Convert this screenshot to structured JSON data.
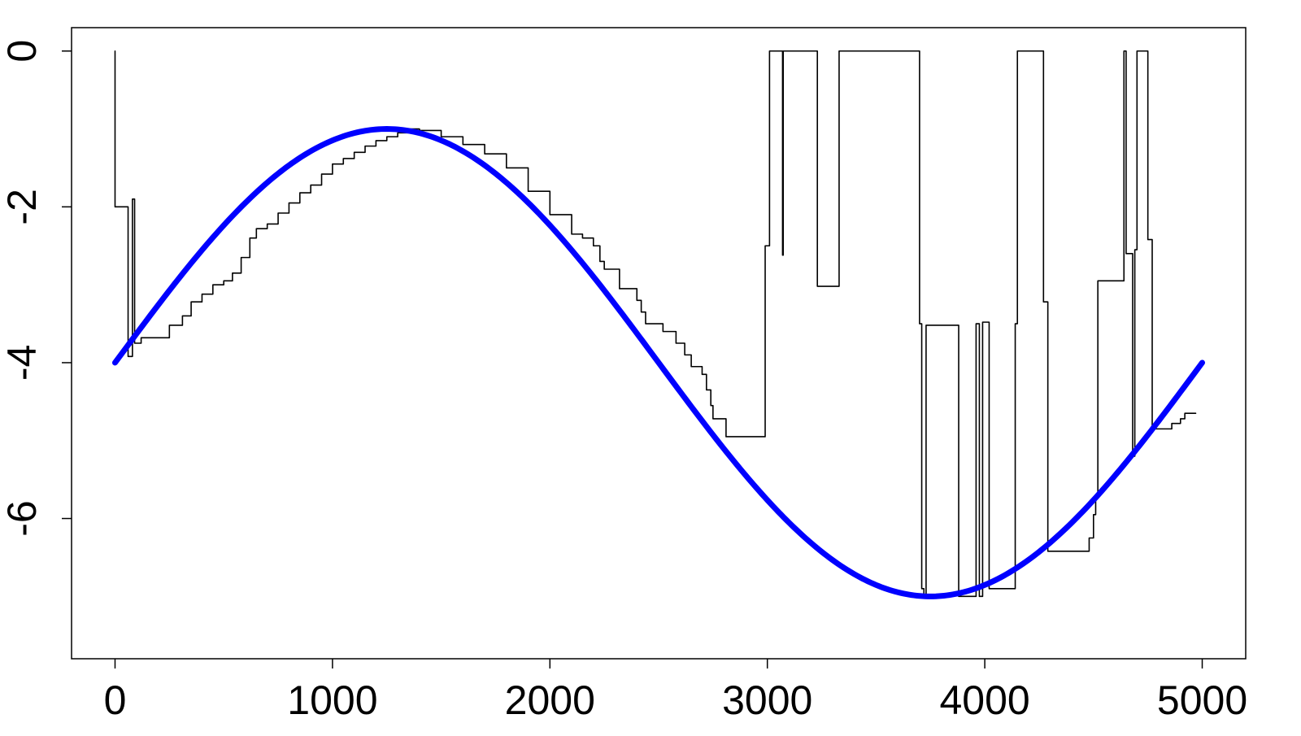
{
  "chart_data": {
    "type": "line",
    "title": "",
    "xlabel": "",
    "ylabel": "",
    "xlim": [
      -200,
      5200
    ],
    "ylim": [
      -7.8,
      0.3
    ],
    "grid": false,
    "x_ticks": [
      0,
      1000,
      2000,
      3000,
      4000,
      5000
    ],
    "x_tick_labels": [
      "0",
      "1000",
      "2000",
      "3000",
      "4000",
      "5000"
    ],
    "y_ticks": [
      0,
      -2,
      -4,
      -6
    ],
    "y_tick_labels": [
      "0",
      "-2",
      "-4",
      "-6"
    ],
    "series": [
      {
        "style": "step",
        "color": "#000000",
        "points": [
          [
            0,
            0
          ],
          [
            0,
            -2
          ],
          [
            60,
            -2
          ],
          [
            60,
            -3.92
          ],
          [
            80,
            -3.92
          ],
          [
            80,
            -1.9
          ],
          [
            90,
            -1.9
          ],
          [
            90,
            -3.75
          ],
          [
            120,
            -3.75
          ],
          [
            120,
            -3.68
          ],
          [
            250,
            -3.68
          ],
          [
            250,
            -3.52
          ],
          [
            310,
            -3.52
          ],
          [
            310,
            -3.4
          ],
          [
            350,
            -3.4
          ],
          [
            350,
            -3.22
          ],
          [
            400,
            -3.22
          ],
          [
            400,
            -3.12
          ],
          [
            450,
            -3.12
          ],
          [
            450,
            -3.0
          ],
          [
            500,
            -3.0
          ],
          [
            500,
            -2.95
          ],
          [
            540,
            -2.95
          ],
          [
            540,
            -2.85
          ],
          [
            580,
            -2.85
          ],
          [
            580,
            -2.65
          ],
          [
            620,
            -2.65
          ],
          [
            620,
            -2.4
          ],
          [
            650,
            -2.4
          ],
          [
            650,
            -2.28
          ],
          [
            700,
            -2.28
          ],
          [
            700,
            -2.22
          ],
          [
            750,
            -2.22
          ],
          [
            750,
            -2.08
          ],
          [
            800,
            -2.08
          ],
          [
            800,
            -1.95
          ],
          [
            850,
            -1.95
          ],
          [
            850,
            -1.82
          ],
          [
            900,
            -1.82
          ],
          [
            900,
            -1.72
          ],
          [
            950,
            -1.72
          ],
          [
            950,
            -1.58
          ],
          [
            1000,
            -1.58
          ],
          [
            1000,
            -1.45
          ],
          [
            1050,
            -1.45
          ],
          [
            1050,
            -1.38
          ],
          [
            1100,
            -1.38
          ],
          [
            1100,
            -1.3
          ],
          [
            1150,
            -1.3
          ],
          [
            1150,
            -1.22
          ],
          [
            1200,
            -1.22
          ],
          [
            1200,
            -1.15
          ],
          [
            1250,
            -1.15
          ],
          [
            1250,
            -1.1
          ],
          [
            1300,
            -1.1
          ],
          [
            1300,
            -1.05
          ],
          [
            1350,
            -1.05
          ],
          [
            1350,
            -1.0
          ],
          [
            1400,
            -1.0
          ],
          [
            1400,
            -1.02
          ],
          [
            1500,
            -1.02
          ],
          [
            1500,
            -1.1
          ],
          [
            1600,
            -1.1
          ],
          [
            1600,
            -1.2
          ],
          [
            1700,
            -1.2
          ],
          [
            1700,
            -1.32
          ],
          [
            1800,
            -1.32
          ],
          [
            1800,
            -1.5
          ],
          [
            1900,
            -1.5
          ],
          [
            1900,
            -1.8
          ],
          [
            2000,
            -1.8
          ],
          [
            2000,
            -2.1
          ],
          [
            2100,
            -2.1
          ],
          [
            2100,
            -2.35
          ],
          [
            2150,
            -2.35
          ],
          [
            2150,
            -2.4
          ],
          [
            2200,
            -2.4
          ],
          [
            2200,
            -2.5
          ],
          [
            2230,
            -2.5
          ],
          [
            2230,
            -2.7
          ],
          [
            2250,
            -2.7
          ],
          [
            2250,
            -2.8
          ],
          [
            2320,
            -2.8
          ],
          [
            2320,
            -3.05
          ],
          [
            2400,
            -3.05
          ],
          [
            2400,
            -3.2
          ],
          [
            2420,
            -3.2
          ],
          [
            2420,
            -3.35
          ],
          [
            2440,
            -3.35
          ],
          [
            2440,
            -3.5
          ],
          [
            2520,
            -3.5
          ],
          [
            2520,
            -3.6
          ],
          [
            2580,
            -3.6
          ],
          [
            2580,
            -3.75
          ],
          [
            2620,
            -3.75
          ],
          [
            2620,
            -3.9
          ],
          [
            2650,
            -3.9
          ],
          [
            2650,
            -4.05
          ],
          [
            2700,
            -4.05
          ],
          [
            2700,
            -4.15
          ],
          [
            2720,
            -4.15
          ],
          [
            2720,
            -4.35
          ],
          [
            2740,
            -4.35
          ],
          [
            2740,
            -4.55
          ],
          [
            2750,
            -4.55
          ],
          [
            2750,
            -4.72
          ],
          [
            2810,
            -4.72
          ],
          [
            2810,
            -4.95
          ],
          [
            2990,
            -4.95
          ],
          [
            2990,
            -2.5
          ],
          [
            3010,
            -2.5
          ],
          [
            3010,
            0
          ],
          [
            3070,
            0
          ],
          [
            3070,
            -2.62
          ],
          [
            3073,
            -2.62
          ],
          [
            3073,
            0
          ],
          [
            3230,
            0
          ],
          [
            3230,
            -3.02
          ],
          [
            3330,
            -3.02
          ],
          [
            3330,
            0
          ],
          [
            3700,
            0
          ],
          [
            3700,
            -3.5
          ],
          [
            3710,
            -3.5
          ],
          [
            3710,
            -6.9
          ],
          [
            3720,
            -6.9
          ],
          [
            3720,
            -6.98
          ],
          [
            3730,
            -6.98
          ],
          [
            3730,
            -3.52
          ],
          [
            3880,
            -3.52
          ],
          [
            3880,
            -7.0
          ],
          [
            3960,
            -7.0
          ],
          [
            3960,
            -3.5
          ],
          [
            3975,
            -3.5
          ],
          [
            3975,
            -7.0
          ],
          [
            3990,
            -7.0
          ],
          [
            3990,
            -3.48
          ],
          [
            4020,
            -3.48
          ],
          [
            4020,
            -6.9
          ],
          [
            4140,
            -6.9
          ],
          [
            4140,
            -3.5
          ],
          [
            4150,
            -3.5
          ],
          [
            4150,
            0
          ],
          [
            4270,
            0
          ],
          [
            4270,
            -3.22
          ],
          [
            4290,
            -3.22
          ],
          [
            4290,
            -6.42
          ],
          [
            4480,
            -6.42
          ],
          [
            4480,
            -6.25
          ],
          [
            4500,
            -6.25
          ],
          [
            4500,
            -5.95
          ],
          [
            4510,
            -5.95
          ],
          [
            4510,
            -5.7
          ],
          [
            4520,
            -5.7
          ],
          [
            4520,
            -2.95
          ],
          [
            4640,
            -2.95
          ],
          [
            4640,
            0
          ],
          [
            4650,
            0
          ],
          [
            4650,
            -2.6
          ],
          [
            4680,
            -2.6
          ],
          [
            4680,
            -5.2
          ],
          [
            4690,
            -5.2
          ],
          [
            4690,
            -2.55
          ],
          [
            4700,
            -2.55
          ],
          [
            4700,
            0
          ],
          [
            4750,
            0
          ],
          [
            4750,
            -2.42
          ],
          [
            4770,
            -2.42
          ],
          [
            4770,
            -4.85
          ],
          [
            4860,
            -4.85
          ],
          [
            4860,
            -4.78
          ],
          [
            4900,
            -4.78
          ],
          [
            4900,
            -4.72
          ],
          [
            4920,
            -4.72
          ],
          [
            4920,
            -4.65
          ],
          [
            4970,
            -4.65
          ]
        ]
      },
      {
        "style": "function",
        "color": "#0000ff",
        "function": "-4 + 3*sin(2*pi*x/5000)",
        "x_start": 0,
        "x_end": 5000
      }
    ]
  }
}
